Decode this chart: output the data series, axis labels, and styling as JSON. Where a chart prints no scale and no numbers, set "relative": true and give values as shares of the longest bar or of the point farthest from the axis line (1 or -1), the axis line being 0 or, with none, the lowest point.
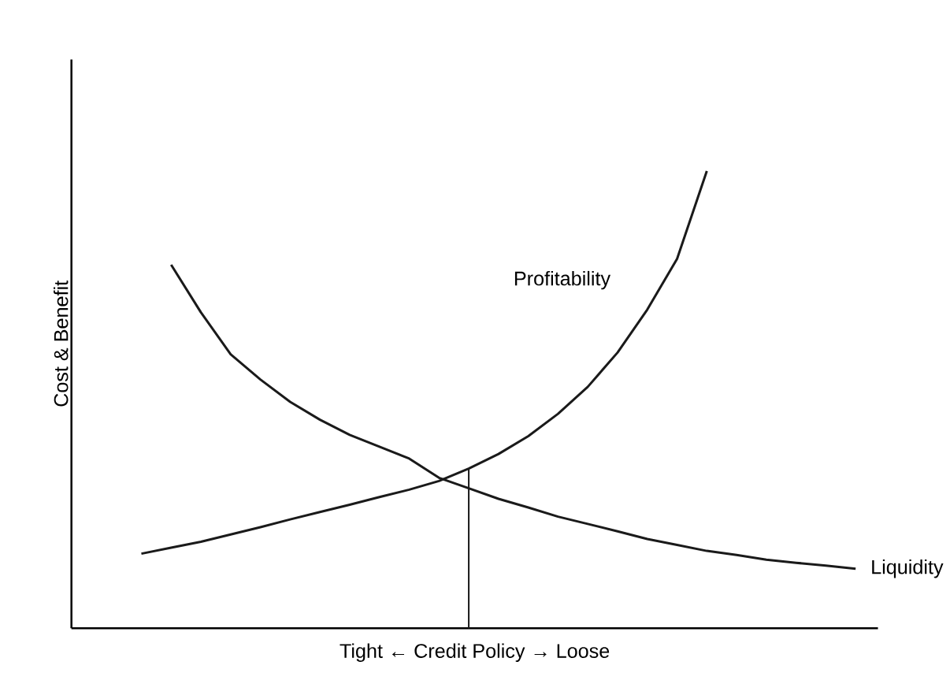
{
  "chart_data": {
    "type": "line",
    "relative": true,
    "xlabel": "Tight ← Credit Policy → Loose",
    "ylabel": "Cost & Benefit",
    "line_style": "solid",
    "categories": [
      null,
      null,
      null,
      null,
      null,
      null,
      null,
      null,
      null,
      null,
      null,
      null,
      null,
      null,
      null,
      null,
      null,
      null,
      null,
      null,
      null,
      null,
      null,
      null,
      null
    ],
    "series": [
      {
        "name": "Profitability",
        "color": "#1a1a1a",
        "values": [
          0.163,
          0.176,
          0.189,
          0.205,
          0.221,
          0.238,
          0.254,
          0.27,
          0.287,
          0.303,
          0.322,
          0.349,
          0.381,
          0.42,
          0.469,
          0.528,
          0.603,
          0.697,
          0.808,
          1.0,
          null,
          null,
          null,
          null,
          null
        ]
      },
      {
        "name": "Liquidity",
        "color": "#1a1a1a",
        "values": [
          null,
          0.795,
          0.691,
          0.599,
          0.544,
          0.495,
          0.456,
          0.423,
          0.397,
          0.371,
          0.329,
          0.306,
          0.283,
          0.264,
          0.244,
          0.228,
          0.212,
          0.195,
          0.182,
          0.169,
          0.16,
          0.15,
          0.143,
          0.137,
          0.13
        ]
      }
    ]
  }
}
